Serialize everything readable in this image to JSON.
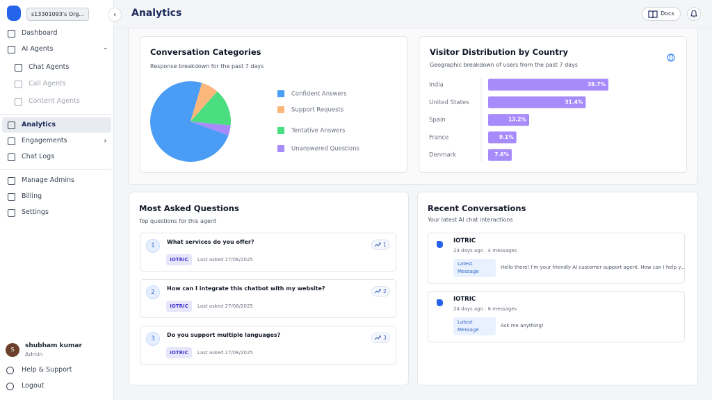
{
  "sidebar": {
    "org": "s13301093's Org...",
    "nav": [
      "Dashboard",
      "AI Agents",
      "Chat Agents",
      "Call Agents",
      "Content Agents",
      "Analytics",
      "Engagements",
      "Chat Logs",
      "Manage Admins",
      "Billing",
      "Settings"
    ],
    "user": {
      "initial": "S",
      "name": "shubham kumar",
      "role": "Admin"
    },
    "footer": [
      "Help & Support",
      "Logout"
    ]
  },
  "header": {
    "title": "Analytics",
    "docs": "Docs"
  },
  "chart_data": [
    {
      "type": "pie",
      "title": "Conversation Categories",
      "subtitle": "Response breakdown for the past 7 days",
      "categories": [
        "Confident Answers",
        "Support Requests",
        "Tentative Answers",
        "Unanswered Questions"
      ],
      "values": [
        74,
        7,
        15,
        4
      ],
      "colors": [
        "#4b9cf5",
        "#fdb77a",
        "#4ade80",
        "#a78bfa"
      ]
    },
    {
      "type": "bar",
      "title": "Visitor Distribution by Country",
      "subtitle": "Geographic breakdown of users from the past 7 days",
      "categories": [
        "India",
        "United States",
        "Spain",
        "France",
        "Denmark"
      ],
      "values": [
        38.7,
        31.4,
        13.2,
        9.1,
        7.6
      ],
      "value_labels": [
        "38.7%",
        "31.4%",
        "13.2%",
        "9.1%",
        "7.6%"
      ],
      "color": "#a78bfa"
    }
  ],
  "questions": {
    "title": "Most Asked Questions",
    "subtitle": "Top questions for this agent",
    "items": [
      {
        "number": 1,
        "text": "What  services do you  offer?",
        "tag": "IOTRIC",
        "last_asked": "Last asked 27/08/2025",
        "count": 1
      },
      {
        "number": 2,
        "text": "How can I integrate this chatbot with my website?",
        "tag": "IOTRIC",
        "last_asked": "Last asked 27/08/2025",
        "count": 2
      },
      {
        "number": 3,
        "text": "Do you support multiple languages?",
        "tag": "IOTRIC",
        "last_asked": "Last asked 27/08/2025",
        "count": 3
      }
    ]
  },
  "conversations": {
    "title": "Recent Conversations",
    "subtitle": "Your latest AI chat interactions",
    "items": [
      {
        "name": "IOTRIC",
        "meta": "24 days ago . 4 messages",
        "badge": "Latest Message",
        "message": "Hello there! I'm your friendly AI customer support agent. How can I help y..."
      },
      {
        "name": "IOTRIC",
        "meta": "24 days ago . 6 messages",
        "badge": "Latest Message",
        "message": "Ask me anything!"
      }
    ]
  }
}
